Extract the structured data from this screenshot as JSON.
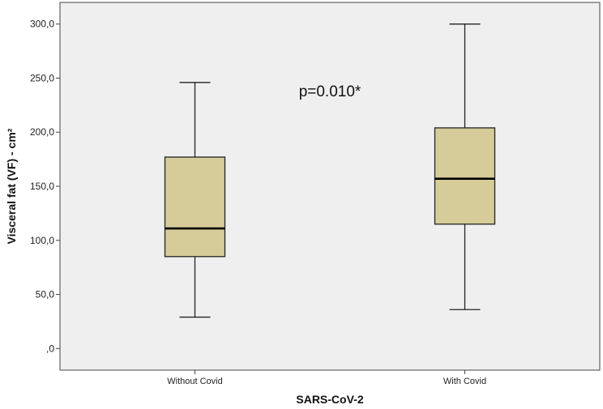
{
  "chart_data": {
    "type": "box",
    "title": "",
    "xlabel": "SARS-CoV-2",
    "ylabel": "Visceral fat (VF) - cm²",
    "ylim": [
      -20,
      320
    ],
    "yticks": [
      0,
      50,
      100,
      150,
      200,
      250,
      300
    ],
    "ytick_labels": [
      ",0",
      "50,0",
      "100,0",
      "150,0",
      "200,0",
      "250,0",
      "300,0"
    ],
    "categories": [
      "Without Covid",
      "With Covid"
    ],
    "boxes": [
      {
        "category": "Without Covid",
        "min": 29,
        "q1": 85,
        "median": 111,
        "q3": 177,
        "max": 246
      },
      {
        "category": "With Covid",
        "min": 36,
        "q1": 115,
        "median": 157,
        "q3": 204,
        "max": 300
      }
    ],
    "annotation": "p=0.010*",
    "grid": false,
    "colors": {
      "box_fill": "#d6cc99",
      "plot_bg": "#efefef",
      "line": "#222222"
    }
  }
}
